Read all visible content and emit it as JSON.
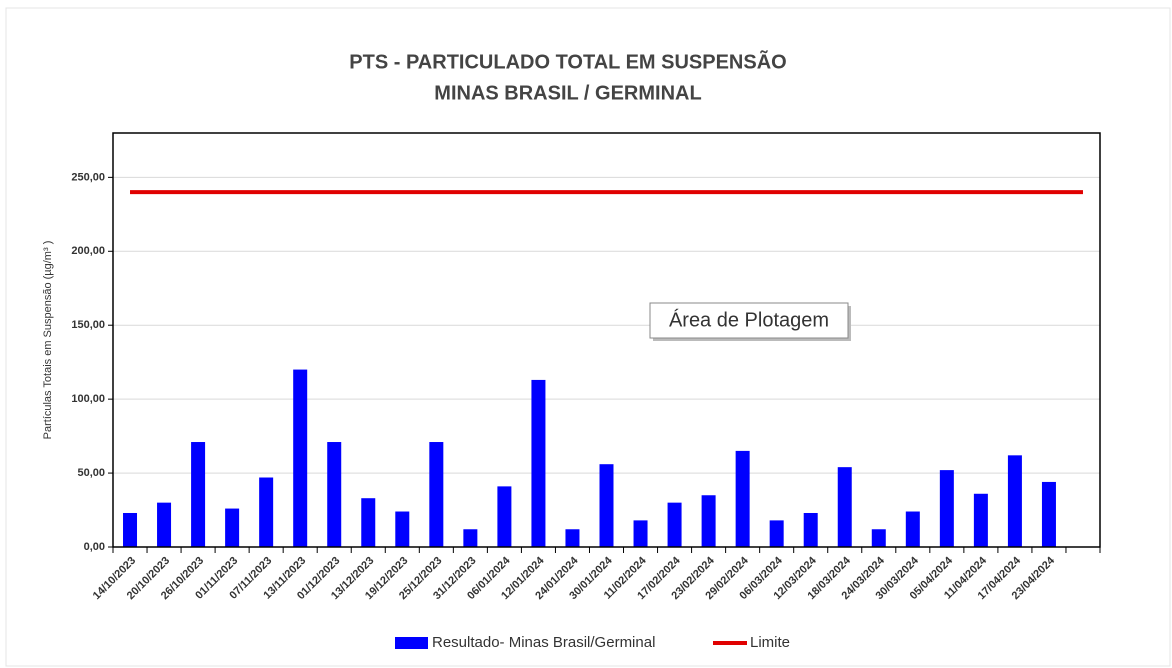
{
  "chart_data": {
    "type": "bar",
    "title": "PTS - PARTICULADO TOTAL EM SUSPENSÃO",
    "subtitle": "MINAS BRASIL / GERMINAL",
    "y_label": "Partículas Totais em Suspensão (µg/m³ )",
    "annotation": "Área de Plotagem",
    "categories": [
      "14/10/2023",
      "20/10/2023",
      "26/10/2023",
      "01/11/2023",
      "07/11/2023",
      "13/11/2023",
      "01/12/2023",
      "13/12/2023",
      "19/12/2023",
      "25/12/2023",
      "31/12/2023",
      "06/01/2024",
      "12/01/2024",
      "24/01/2024",
      "30/01/2024",
      "11/02/2024",
      "17/02/2024",
      "23/02/2024",
      "29/02/2024",
      "06/03/2024",
      "12/03/2024",
      "18/03/2024",
      "24/03/2024",
      "30/03/2024",
      "05/04/2024",
      "11/04/2024",
      "17/04/2024",
      "23/04/2024",
      null
    ],
    "series": [
      {
        "name": "Resultado- Minas Brasil/Germinal",
        "type": "bar",
        "color": "#0000ff",
        "values": [
          23,
          30,
          71,
          26,
          47,
          120,
          71,
          33,
          24,
          71,
          12,
          41,
          113,
          12,
          56,
          18,
          30,
          35,
          65,
          18,
          23,
          54,
          12,
          24,
          52,
          36,
          62,
          44,
          null
        ]
      },
      {
        "name": "Limite",
        "type": "line",
        "color": "#e00000",
        "values": [
          240,
          240,
          240,
          240,
          240,
          240,
          240,
          240,
          240,
          240,
          240,
          240,
          240,
          240,
          240,
          240,
          240,
          240,
          240,
          240,
          240,
          240,
          240,
          240,
          240,
          240,
          240,
          240,
          240
        ]
      }
    ],
    "ylim": [
      0,
      280
    ],
    "yticks": [
      {
        "value": 0,
        "label": "0,00"
      },
      {
        "value": 50,
        "label": "50,00"
      },
      {
        "value": 100,
        "label": "100,00"
      },
      {
        "value": 150,
        "label": "150,00"
      },
      {
        "value": 200,
        "label": "200,00"
      },
      {
        "value": 250,
        "label": "250,00"
      }
    ],
    "grid": true,
    "legend": "bottom"
  }
}
